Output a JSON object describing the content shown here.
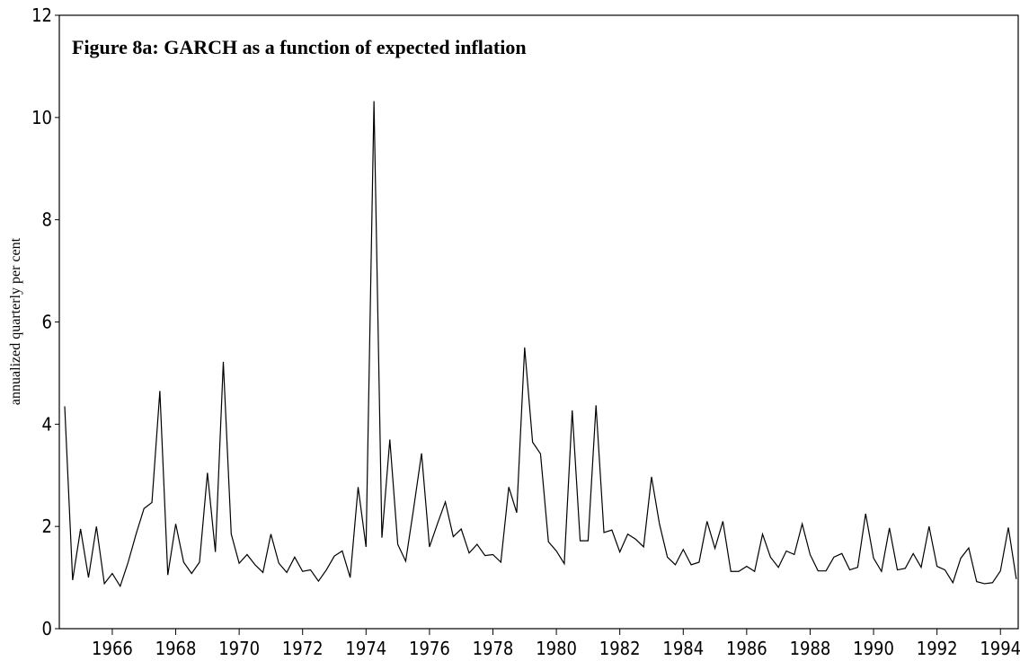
{
  "chart_data": {
    "type": "line",
    "title": "Figure 8a: GARCH as a function of expected inflation",
    "y_label": "annualized quarterly per cent",
    "x": [
      1964.5,
      1964.75,
      1965,
      1965.25,
      1965.5,
      1965.75,
      1966,
      1966.25,
      1966.5,
      1966.75,
      1967,
      1967.25,
      1967.5,
      1967.75,
      1968,
      1968.25,
      1968.5,
      1968.75,
      1969,
      1969.25,
      1969.5,
      1969.75,
      1970,
      1970.25,
      1970.5,
      1970.75,
      1971,
      1971.25,
      1971.5,
      1971.75,
      1972,
      1972.25,
      1972.5,
      1972.75,
      1973,
      1973.25,
      1973.5,
      1973.75,
      1974,
      1974.25,
      1974.5,
      1974.75,
      1975,
      1975.25,
      1975.5,
      1975.75,
      1976,
      1976.25,
      1976.5,
      1976.75,
      1977,
      1977.25,
      1977.5,
      1977.75,
      1978,
      1978.25,
      1978.5,
      1978.75,
      1979,
      1979.25,
      1979.5,
      1979.75,
      1980,
      1980.25,
      1980.5,
      1980.75,
      1981,
      1981.25,
      1981.5,
      1981.75,
      1982,
      1982.25,
      1982.5,
      1982.75,
      1983,
      1983.25,
      1983.5,
      1983.75,
      1984,
      1984.25,
      1984.5,
      1984.75,
      1985,
      1985.25,
      1985.5,
      1985.75,
      1986,
      1986.25,
      1986.5,
      1986.75,
      1987,
      1987.25,
      1987.5,
      1987.75,
      1988,
      1988.25,
      1988.5,
      1988.75,
      1989,
      1989.25,
      1989.5,
      1989.75,
      1990,
      1990.25,
      1990.5,
      1990.75,
      1991,
      1991.25,
      1991.5,
      1991.75,
      1992,
      1992.25,
      1992.5,
      1992.75,
      1993,
      1993.25,
      1993.5,
      1993.75,
      1994,
      1994.25,
      1994.5
    ],
    "series": [
      {
        "color": "#000000",
        "values": [
          4.35,
          0.95,
          1.95,
          1.0,
          2.0,
          0.88,
          1.08,
          0.83,
          1.3,
          1.85,
          2.35,
          2.47,
          4.65,
          1.05,
          2.05,
          1.3,
          1.08,
          1.3,
          3.05,
          1.5,
          5.22,
          1.85,
          1.28,
          1.45,
          1.25,
          1.1,
          1.85,
          1.28,
          1.1,
          1.4,
          1.12,
          1.15,
          0.93,
          1.15,
          1.42,
          1.52,
          1.0,
          2.77,
          1.6,
          10.32,
          1.78,
          3.7,
          1.65,
          1.32,
          2.35,
          3.43,
          1.6,
          2.05,
          2.48,
          1.8,
          1.95,
          1.48,
          1.65,
          1.43,
          1.45,
          1.3,
          2.77,
          2.27,
          5.5,
          3.65,
          3.42,
          1.7,
          1.52,
          1.27,
          4.27,
          1.72,
          1.72,
          4.37,
          1.88,
          1.93,
          1.5,
          1.85,
          1.75,
          1.6,
          2.97,
          2.05,
          1.4,
          1.25,
          1.55,
          1.25,
          1.3,
          2.1,
          1.57,
          2.1,
          1.12,
          1.12,
          1.22,
          1.12,
          1.85,
          1.4,
          1.2,
          1.52,
          1.45,
          2.05,
          1.45,
          1.13,
          1.13,
          1.4,
          1.47,
          1.15,
          1.2,
          2.25,
          1.38,
          1.12,
          1.97,
          1.15,
          1.18,
          1.47,
          1.2,
          2.0,
          1.22,
          1.15,
          0.9,
          1.38,
          1.58,
          0.92,
          0.88,
          0.9,
          1.13,
          1.98,
          0.97
        ]
      }
    ],
    "xlim": [
      1964.33,
      1994.56
    ],
    "xticks": [
      1966,
      1968,
      1970,
      1972,
      1974,
      1976,
      1978,
      1980,
      1982,
      1984,
      1986,
      1988,
      1990,
      1992,
      1994
    ],
    "ylim": [
      0,
      12
    ],
    "yticks": [
      0,
      2,
      4,
      6,
      8,
      10,
      12
    ],
    "grid": false
  }
}
